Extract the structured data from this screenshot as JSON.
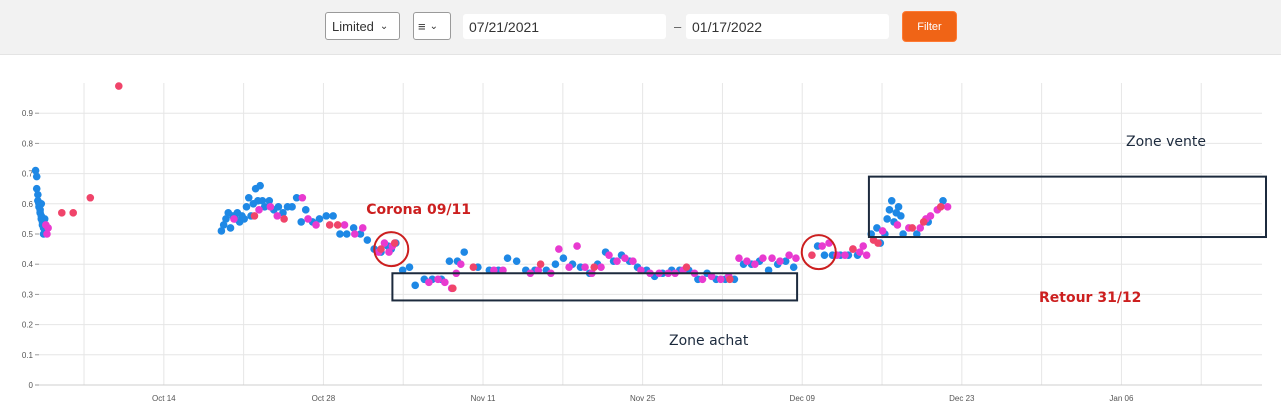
{
  "toolbar": {
    "mode_select": "Limited",
    "menu_icon": "≡",
    "date_from": "07/21/2021",
    "date_separator": "–",
    "date_to": "01/17/2022",
    "filter_label": "Filter"
  },
  "colors": {
    "blue": "#1e88e5",
    "magenta": "#e83ad0",
    "red": "#f0446a",
    "annotation_red": "#cc1f1f",
    "annotation_box": "#1c2a3d",
    "filter_button": "#f06416"
  },
  "chart_data": {
    "type": "scatter",
    "grid": true,
    "ylim": [
      0,
      1
    ],
    "y_ticks": [
      "0",
      "0.1",
      "0.2",
      "0.3",
      "0.4",
      "0.5",
      "0.6",
      "0.7",
      "0.8",
      "0.9"
    ],
    "x_tick_labels": [
      "Oct 14",
      "Oct 28",
      "Nov 11",
      "Nov 25",
      "Dec 09",
      "Dec 23",
      "Jan 06"
    ],
    "series": [
      {
        "values": [
          [
            -0.3,
            0.71
          ],
          [
            -0.2,
            0.69
          ],
          [
            -0.2,
            0.65
          ],
          [
            -0.1,
            0.63
          ],
          [
            -0.1,
            0.61
          ],
          [
            0,
            0.6
          ],
          [
            0,
            0.59
          ],
          [
            0.1,
            0.58
          ],
          [
            0.1,
            0.57
          ],
          [
            0.2,
            0.56
          ],
          [
            0.2,
            0.55
          ],
          [
            0.3,
            0.54
          ],
          [
            0.3,
            0.53
          ],
          [
            0.4,
            0.52
          ],
          [
            0.4,
            0.5
          ],
          [
            0.5,
            0.51
          ],
          [
            0.5,
            0.55
          ],
          [
            0.1,
            0.6
          ],
          [
            0.2,
            0.6
          ],
          [
            16.0,
            0.51
          ],
          [
            16.2,
            0.53
          ],
          [
            16.4,
            0.55
          ],
          [
            16.6,
            0.57
          ],
          [
            16.8,
            0.52
          ],
          [
            17.0,
            0.56
          ],
          [
            17.2,
            0.55
          ],
          [
            17.4,
            0.57
          ],
          [
            17.6,
            0.54
          ],
          [
            17.8,
            0.56
          ],
          [
            18.0,
            0.55
          ],
          [
            18.2,
            0.59
          ],
          [
            18.4,
            0.62
          ],
          [
            18.6,
            0.56
          ],
          [
            18.8,
            0.6
          ],
          [
            19.0,
            0.65
          ],
          [
            19.2,
            0.61
          ],
          [
            19.4,
            0.66
          ],
          [
            19.6,
            0.61
          ],
          [
            19.8,
            0.59
          ],
          [
            20.2,
            0.61
          ],
          [
            20.6,
            0.58
          ],
          [
            21.0,
            0.59
          ],
          [
            21.4,
            0.57
          ],
          [
            21.8,
            0.59
          ],
          [
            22.2,
            0.59
          ],
          [
            22.6,
            0.62
          ],
          [
            23.0,
            0.54
          ],
          [
            23.4,
            0.58
          ],
          [
            24.0,
            0.54
          ],
          [
            24.6,
            0.55
          ],
          [
            25.2,
            0.56
          ],
          [
            25.8,
            0.56
          ],
          [
            26.4,
            0.5
          ],
          [
            27.0,
            0.5
          ],
          [
            27.6,
            0.52
          ],
          [
            28.2,
            0.5
          ],
          [
            28.8,
            0.48
          ],
          [
            29.4,
            0.45
          ],
          [
            30.0,
            0.44
          ],
          [
            30.6,
            0.46
          ],
          [
            30.9,
            0.45
          ],
          [
            31.3,
            0.47
          ],
          [
            31.9,
            0.38
          ],
          [
            32.5,
            0.39
          ],
          [
            33.0,
            0.33
          ],
          [
            33.8,
            0.35
          ],
          [
            34.5,
            0.35
          ],
          [
            35.3,
            0.35
          ],
          [
            36.0,
            0.41
          ],
          [
            36.7,
            0.41
          ],
          [
            37.3,
            0.44
          ],
          [
            38.5,
            0.39
          ],
          [
            39.5,
            0.38
          ],
          [
            40.3,
            0.38
          ],
          [
            41.1,
            0.42
          ],
          [
            41.9,
            0.41
          ],
          [
            42.7,
            0.38
          ],
          [
            43.5,
            0.38
          ],
          [
            44.5,
            0.38
          ],
          [
            45.3,
            0.4
          ],
          [
            46.0,
            0.42
          ],
          [
            46.8,
            0.4
          ],
          [
            47.5,
            0.39
          ],
          [
            48.3,
            0.37
          ],
          [
            49.0,
            0.4
          ],
          [
            49.7,
            0.44
          ],
          [
            50.4,
            0.41
          ],
          [
            51.1,
            0.43
          ],
          [
            51.8,
            0.41
          ],
          [
            52.5,
            0.39
          ],
          [
            53.3,
            0.38
          ],
          [
            54.0,
            0.36
          ],
          [
            54.7,
            0.37
          ],
          [
            55.5,
            0.38
          ],
          [
            56.2,
            0.38
          ],
          [
            57.0,
            0.38
          ],
          [
            57.8,
            0.35
          ],
          [
            58.6,
            0.37
          ],
          [
            59.4,
            0.35
          ],
          [
            60.2,
            0.35
          ],
          [
            61.0,
            0.35
          ],
          [
            61.8,
            0.4
          ],
          [
            62.5,
            0.4
          ],
          [
            63.2,
            0.41
          ],
          [
            64.0,
            0.38
          ],
          [
            64.8,
            0.4
          ],
          [
            65.5,
            0.41
          ],
          [
            66.2,
            0.39
          ],
          [
            68.3,
            0.46
          ],
          [
            68.9,
            0.43
          ],
          [
            69.6,
            0.43
          ],
          [
            70.3,
            0.43
          ],
          [
            71.0,
            0.43
          ],
          [
            71.8,
            0.43
          ],
          [
            73.0,
            0.5
          ],
          [
            73.5,
            0.52
          ],
          [
            73.8,
            0.47
          ],
          [
            74.2,
            0.5
          ],
          [
            74.4,
            0.55
          ],
          [
            74.6,
            0.58
          ],
          [
            74.8,
            0.61
          ],
          [
            75.0,
            0.54
          ],
          [
            75.2,
            0.57
          ],
          [
            75.4,
            0.59
          ],
          [
            75.6,
            0.56
          ],
          [
            75.8,
            0.5
          ],
          [
            77.0,
            0.5
          ],
          [
            78.0,
            0.54
          ],
          [
            79.3,
            0.61
          ]
        ]
      },
      {
        "values": [
          [
            0.6,
            0.53
          ],
          [
            0.7,
            0.5
          ],
          [
            0.8,
            0.52
          ],
          [
            17.1,
            0.55
          ],
          [
            19.3,
            0.58
          ],
          [
            20.3,
            0.59
          ],
          [
            20.9,
            0.56
          ],
          [
            23.1,
            0.62
          ],
          [
            23.6,
            0.55
          ],
          [
            24.3,
            0.53
          ],
          [
            26.8,
            0.53
          ],
          [
            27.7,
            0.5
          ],
          [
            28.4,
            0.52
          ],
          [
            29.8,
            0.44
          ],
          [
            30.3,
            0.47
          ],
          [
            30.7,
            0.44
          ],
          [
            31.0,
            0.46
          ],
          [
            34.2,
            0.34
          ],
          [
            35.0,
            0.35
          ],
          [
            35.6,
            0.34
          ],
          [
            36.2,
            0.32
          ],
          [
            36.6,
            0.37
          ],
          [
            37.0,
            0.4
          ],
          [
            39.9,
            0.38
          ],
          [
            40.7,
            0.38
          ],
          [
            43.1,
            0.37
          ],
          [
            43.8,
            0.38
          ],
          [
            44.9,
            0.37
          ],
          [
            45.6,
            0.45
          ],
          [
            46.5,
            0.39
          ],
          [
            47.2,
            0.46
          ],
          [
            47.9,
            0.39
          ],
          [
            48.5,
            0.37
          ],
          [
            49.3,
            0.39
          ],
          [
            50.0,
            0.43
          ],
          [
            50.7,
            0.41
          ],
          [
            51.4,
            0.42
          ],
          [
            52.1,
            0.41
          ],
          [
            52.8,
            0.38
          ],
          [
            53.6,
            0.37
          ],
          [
            54.4,
            0.37
          ],
          [
            55.2,
            0.37
          ],
          [
            55.8,
            0.37
          ],
          [
            56.5,
            0.38
          ],
          [
            57.5,
            0.37
          ],
          [
            58.2,
            0.35
          ],
          [
            59.0,
            0.36
          ],
          [
            59.8,
            0.35
          ],
          [
            60.5,
            0.36
          ],
          [
            61.4,
            0.42
          ],
          [
            62.1,
            0.41
          ],
          [
            62.8,
            0.4
          ],
          [
            63.5,
            0.42
          ],
          [
            64.3,
            0.42
          ],
          [
            65.0,
            0.41
          ],
          [
            65.8,
            0.43
          ],
          [
            66.4,
            0.42
          ],
          [
            68.7,
            0.46
          ],
          [
            69.3,
            0.47
          ],
          [
            70.0,
            0.43
          ],
          [
            70.7,
            0.43
          ],
          [
            71.4,
            0.45
          ],
          [
            72.0,
            0.44
          ],
          [
            72.3,
            0.46
          ],
          [
            72.6,
            0.43
          ],
          [
            74.0,
            0.51
          ],
          [
            75.3,
            0.53
          ],
          [
            76.3,
            0.52
          ],
          [
            77.3,
            0.52
          ],
          [
            77.8,
            0.55
          ],
          [
            78.2,
            0.56
          ],
          [
            78.8,
            0.58
          ],
          [
            79.7,
            0.59
          ]
        ]
      },
      {
        "values": [
          [
            2.0,
            0.57
          ],
          [
            3.0,
            0.57
          ],
          [
            4.5,
            0.62
          ],
          [
            7.0,
            0.99
          ],
          [
            18.9,
            0.56
          ],
          [
            21.5,
            0.55
          ],
          [
            25.5,
            0.53
          ],
          [
            26.2,
            0.53
          ],
          [
            30.0,
            0.45
          ],
          [
            31.2,
            0.47
          ],
          [
            36.3,
            0.32
          ],
          [
            38.1,
            0.39
          ],
          [
            44.0,
            0.4
          ],
          [
            48.7,
            0.39
          ],
          [
            56.8,
            0.39
          ],
          [
            60.6,
            0.35
          ],
          [
            67.8,
            0.43
          ],
          [
            71.4,
            0.45
          ],
          [
            73.2,
            0.48
          ],
          [
            73.6,
            0.47
          ],
          [
            76.6,
            0.52
          ],
          [
            77.6,
            0.54
          ],
          [
            79.1,
            0.59
          ]
        ]
      }
    ],
    "annotations": [
      {
        "text": "Corona 09/11",
        "x": 30.9,
        "y": 0.45
      },
      {
        "text": "Zone achat",
        "x_range": [
          31.0,
          66.5
        ],
        "y_range": [
          0.28,
          0.37
        ]
      },
      {
        "text": "Retour 31/12",
        "x": 68.4,
        "y": 0.44
      },
      {
        "text": "Zone vente",
        "x_range": [
          72.8,
          81.5
        ],
        "y_range": [
          0.49,
          0.69
        ]
      }
    ]
  }
}
